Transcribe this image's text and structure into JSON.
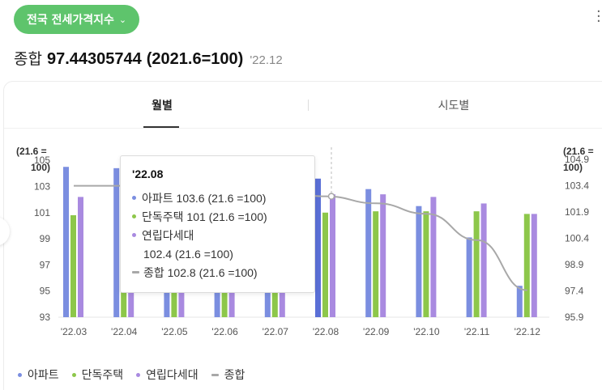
{
  "header": {
    "index_selector_label": "전국 전세가격지수",
    "headline_label": "종합",
    "headline_value": "97.44305744",
    "headline_base": "(2021.6=100)",
    "headline_date": "'22.12"
  },
  "tabs": [
    {
      "label": "월별",
      "selected": true
    },
    {
      "label": "시도별",
      "selected": false
    }
  ],
  "tooltip": {
    "title": "'22.08",
    "apartment": "아파트 103.6 (21.6 =100)",
    "detached": "단독주택 101 (21.6 =100)",
    "rowhouse_label": "연립다세대",
    "rowhouse_value": "102.4 (21.6 =100)",
    "composite": "종합 102.8 (21.6 =100)"
  },
  "colors": {
    "accent": "#5ec46c",
    "apartment": "#7b8ee0",
    "apartment_highlight": "#5a6fd6",
    "detached": "#8dc74a",
    "rowhouse": "#a98ae0",
    "composite": "#a8a8a8"
  },
  "chart_data": {
    "type": "bar",
    "categories": [
      "'22.03",
      "'22.04",
      "'22.05",
      "'22.06",
      "'22.07",
      "'22.08",
      "'22.09",
      "'22.10",
      "'22.11",
      "'22.12"
    ],
    "y_left": {
      "title_line1": "(21.6 =",
      "title_line2": "100)",
      "range": [
        93,
        106
      ],
      "ticks": [
        93,
        95,
        97,
        99,
        101,
        103,
        105
      ]
    },
    "y_right": {
      "title_line1": "(21.6 =",
      "title_line2": "100)",
      "range": [
        95.9,
        105.6
      ],
      "ticks": [
        "95.9",
        "97.4",
        "98.9",
        "100.4",
        "101.9",
        "103.4",
        "104.9"
      ]
    },
    "series": [
      {
        "name": "아파트",
        "axis": "left",
        "kind": "bar",
        "values": [
          104.5,
          104.4,
          104.1,
          103.9,
          103.7,
          103.6,
          102.8,
          101.5,
          99.1,
          95.4
        ]
      },
      {
        "name": "단독주택",
        "axis": "left",
        "kind": "bar",
        "values": [
          100.8,
          100.9,
          100.9,
          101.0,
          101.0,
          101.0,
          101.1,
          101.1,
          101.1,
          100.9
        ]
      },
      {
        "name": "연립다세대",
        "axis": "left",
        "kind": "bar",
        "values": [
          102.2,
          102.3,
          102.3,
          102.4,
          102.4,
          102.4,
          102.4,
          102.2,
          101.7,
          100.9
        ]
      },
      {
        "name": "종합",
        "axis": "right",
        "kind": "line",
        "values": [
          103.4,
          103.4,
          103.4,
          103.3,
          103.1,
          102.8,
          102.4,
          101.8,
          100.3,
          97.44
        ]
      }
    ],
    "highlight_index": 5,
    "legend_position": "bottom-left",
    "grid": false
  },
  "legend": [
    {
      "label": "아파트"
    },
    {
      "label": "단독주택"
    },
    {
      "label": "연립다세대"
    },
    {
      "label": "종합"
    }
  ]
}
